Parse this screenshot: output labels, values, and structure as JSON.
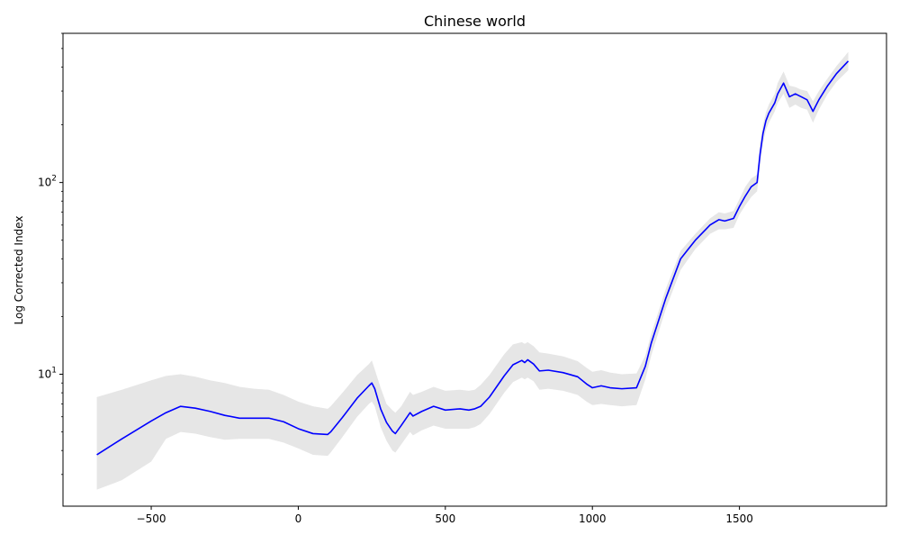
{
  "chart_data": {
    "type": "line",
    "title": "Chinese world",
    "xlabel": "",
    "ylabel": "Log Corrected Index",
    "xlim": [
      -800,
      2000
    ],
    "ylim": [
      2.05,
      600
    ],
    "yscale": "log",
    "x_ticks": [
      {
        "value": -500,
        "label": "−500"
      },
      {
        "value": 0,
        "label": "0"
      },
      {
        "value": 500,
        "label": "500"
      },
      {
        "value": 1000,
        "label": "1000"
      },
      {
        "value": 1500,
        "label": "1500"
      }
    ],
    "y_ticks": [
      {
        "value": 10,
        "base": "10",
        "exp": "1"
      },
      {
        "value": 100,
        "base": "10",
        "exp": "2"
      }
    ],
    "grid": false,
    "legend": "none",
    "colors": {
      "line": "#0000ff",
      "band": "#e6e6e6",
      "axis": "#000000"
    },
    "series": [
      {
        "x": [
          -685,
          -600,
          -500,
          -450,
          -400,
          -350,
          -300,
          -250,
          -200,
          -150,
          -100,
          -50,
          0,
          50,
          100,
          110,
          150,
          200,
          240,
          250,
          260,
          280,
          300,
          320,
          330,
          350,
          380,
          390,
          420,
          460,
          500,
          550,
          580,
          600,
          620,
          650,
          700,
          730,
          760,
          770,
          780,
          800,
          820,
          850,
          900,
          950,
          980,
          1000,
          1030,
          1060,
          1100,
          1150,
          1180,
          1200,
          1250,
          1300,
          1350,
          1400,
          1430,
          1450,
          1480,
          1500,
          1520,
          1540,
          1560,
          1570,
          1580,
          1590,
          1600,
          1620,
          1630,
          1650,
          1670,
          1690,
          1710,
          1730,
          1750,
          1770,
          1800,
          1830,
          1870
        ],
        "y": [
          3.8,
          4.6,
          5.7,
          6.3,
          6.8,
          6.65,
          6.4,
          6.1,
          5.9,
          5.9,
          5.9,
          5.65,
          5.2,
          4.9,
          4.85,
          5.0,
          5.95,
          7.5,
          8.7,
          9.0,
          8.4,
          6.6,
          5.6,
          5.05,
          4.9,
          5.4,
          6.3,
          6.05,
          6.4,
          6.8,
          6.5,
          6.6,
          6.5,
          6.6,
          6.8,
          7.6,
          9.8,
          11.2,
          11.8,
          11.5,
          11.9,
          11.3,
          10.4,
          10.5,
          10.2,
          9.7,
          8.9,
          8.5,
          8.7,
          8.5,
          8.4,
          8.5,
          11.0,
          14.5,
          25.0,
          40.0,
          50.0,
          60.0,
          64.0,
          63.0,
          65.0,
          75.0,
          85.0,
          95.0,
          100.0,
          140.0,
          180.0,
          210.0,
          230.0,
          260.0,
          290.0,
          330.0,
          280.0,
          290.0,
          280.0,
          270.0,
          235.0,
          270.0,
          320.0,
          370.0,
          430.0
        ]
      }
    ],
    "band": {
      "upper": [
        7.6,
        8.3,
        9.3,
        9.8,
        10.0,
        9.7,
        9.3,
        9.0,
        8.6,
        8.4,
        8.3,
        7.8,
        7.2,
        6.8,
        6.6,
        6.8,
        8.0,
        9.9,
        11.3,
        11.8,
        10.6,
        8.5,
        7.0,
        6.5,
        6.3,
        6.8,
        8.1,
        7.8,
        8.1,
        8.6,
        8.2,
        8.3,
        8.2,
        8.3,
        8.8,
        9.9,
        12.7,
        14.3,
        14.7,
        14.4,
        14.7,
        14.0,
        13.0,
        12.8,
        12.4,
        11.7,
        10.8,
        10.3,
        10.5,
        10.2,
        10.0,
        10.1,
        12.5,
        16.2,
        28.0,
        44.0,
        54.0,
        65.0,
        70.0,
        69.0,
        71.0,
        82.0,
        95.0,
        105.0,
        110.0,
        160.0,
        200.0,
        232.0,
        255.0,
        290.0,
        330.0,
        380.0,
        320.0,
        315.0,
        305.0,
        300.0,
        265.0,
        300.0,
        350.0,
        405.0,
        480.0
      ],
      "lower": [
        2.5,
        2.8,
        3.5,
        4.6,
        5.0,
        4.9,
        4.7,
        4.55,
        4.6,
        4.6,
        4.6,
        4.4,
        4.1,
        3.8,
        3.75,
        3.9,
        4.7,
        6.0,
        7.0,
        7.2,
        6.8,
        5.3,
        4.5,
        4.0,
        3.9,
        4.3,
        5.0,
        4.8,
        5.1,
        5.4,
        5.2,
        5.2,
        5.2,
        5.3,
        5.5,
        6.2,
        8.0,
        9.1,
        9.6,
        9.4,
        9.6,
        9.2,
        8.3,
        8.4,
        8.2,
        7.8,
        7.2,
        6.9,
        7.0,
        6.9,
        6.8,
        6.9,
        9.4,
        12.5,
        22.0,
        35.0,
        45.0,
        54.0,
        57.0,
        57.0,
        58.0,
        68.0,
        76.0,
        84.0,
        90.0,
        125.0,
        160.0,
        188.0,
        205.0,
        235.0,
        260.0,
        290.0,
        245.0,
        255.0,
        245.0,
        240.0,
        205.0,
        240.0,
        290.0,
        335.0,
        385.0
      ]
    }
  }
}
